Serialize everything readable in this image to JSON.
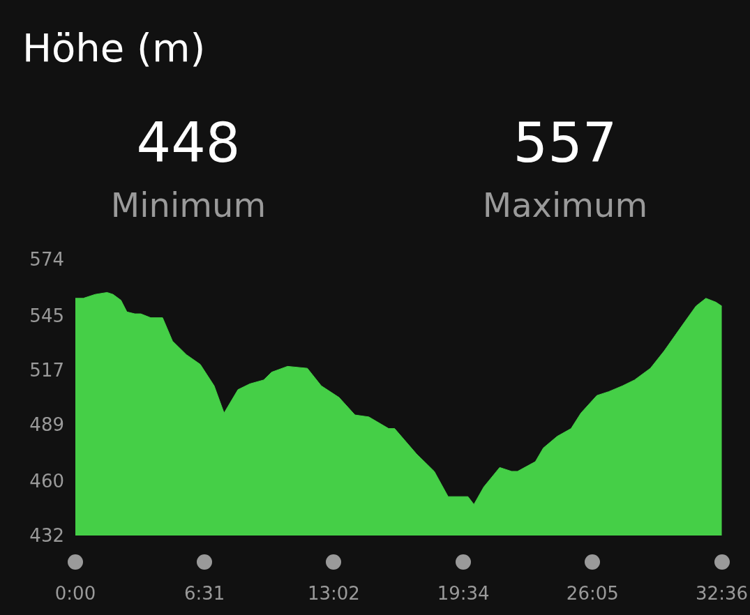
{
  "chart_data": {
    "type": "area",
    "title": "Höhe (m)",
    "annotations": [
      "448",
      "Minimum",
      "557",
      "Maximum"
    ],
    "x": [
      0,
      0.4,
      1.0,
      1.6,
      1.9,
      2.3,
      2.6,
      3.0,
      3.3,
      3.8,
      4.4,
      4.9,
      5.6,
      6.3,
      7.0,
      7.5,
      8.2,
      8.8,
      9.5,
      9.9,
      10.7,
      11.7,
      12.4,
      13.3,
      14.1,
      14.8,
      15.8,
      16.1,
      17.2,
      18.1,
      18.8,
      19.8,
      20.1,
      20.6,
      21.4,
      22.0,
      22.3,
      23.2,
      23.6,
      24.3,
      25.0,
      25.5,
      26.3,
      26.9,
      27.6,
      28.2,
      29.0,
      29.7,
      30.6,
      31.3,
      31.8,
      32.3,
      32.6
    ],
    "series": [
      {
        "color": "#45cf47",
        "values": [
          554,
          554,
          556,
          557,
          556,
          553,
          547,
          546,
          546,
          544,
          544,
          532,
          525,
          520,
          509,
          495,
          507,
          510,
          512,
          516,
          519,
          518,
          509,
          503,
          494,
          493,
          487,
          487,
          474,
          465,
          452,
          452,
          448,
          457,
          467,
          465,
          465,
          470,
          477,
          483,
          487,
          495,
          504,
          506,
          509,
          512,
          518,
          527,
          540,
          550,
          554,
          552,
          550
        ]
      }
    ],
    "xlim": [
      0,
      32.6
    ],
    "xticks": [
      {
        "value": 0,
        "label": "0:00"
      },
      {
        "value": 6.5167,
        "label": "6:31"
      },
      {
        "value": 13.0333,
        "label": "13:02"
      },
      {
        "value": 19.5667,
        "label": "19:34"
      },
      {
        "value": 26.0833,
        "label": "26:05"
      },
      {
        "value": 32.6,
        "label": "32:36"
      }
    ],
    "ylim": [
      432,
      574
    ],
    "yticks": [
      432,
      460,
      489,
      517,
      545,
      574
    ],
    "grid": false,
    "marker": "none"
  }
}
